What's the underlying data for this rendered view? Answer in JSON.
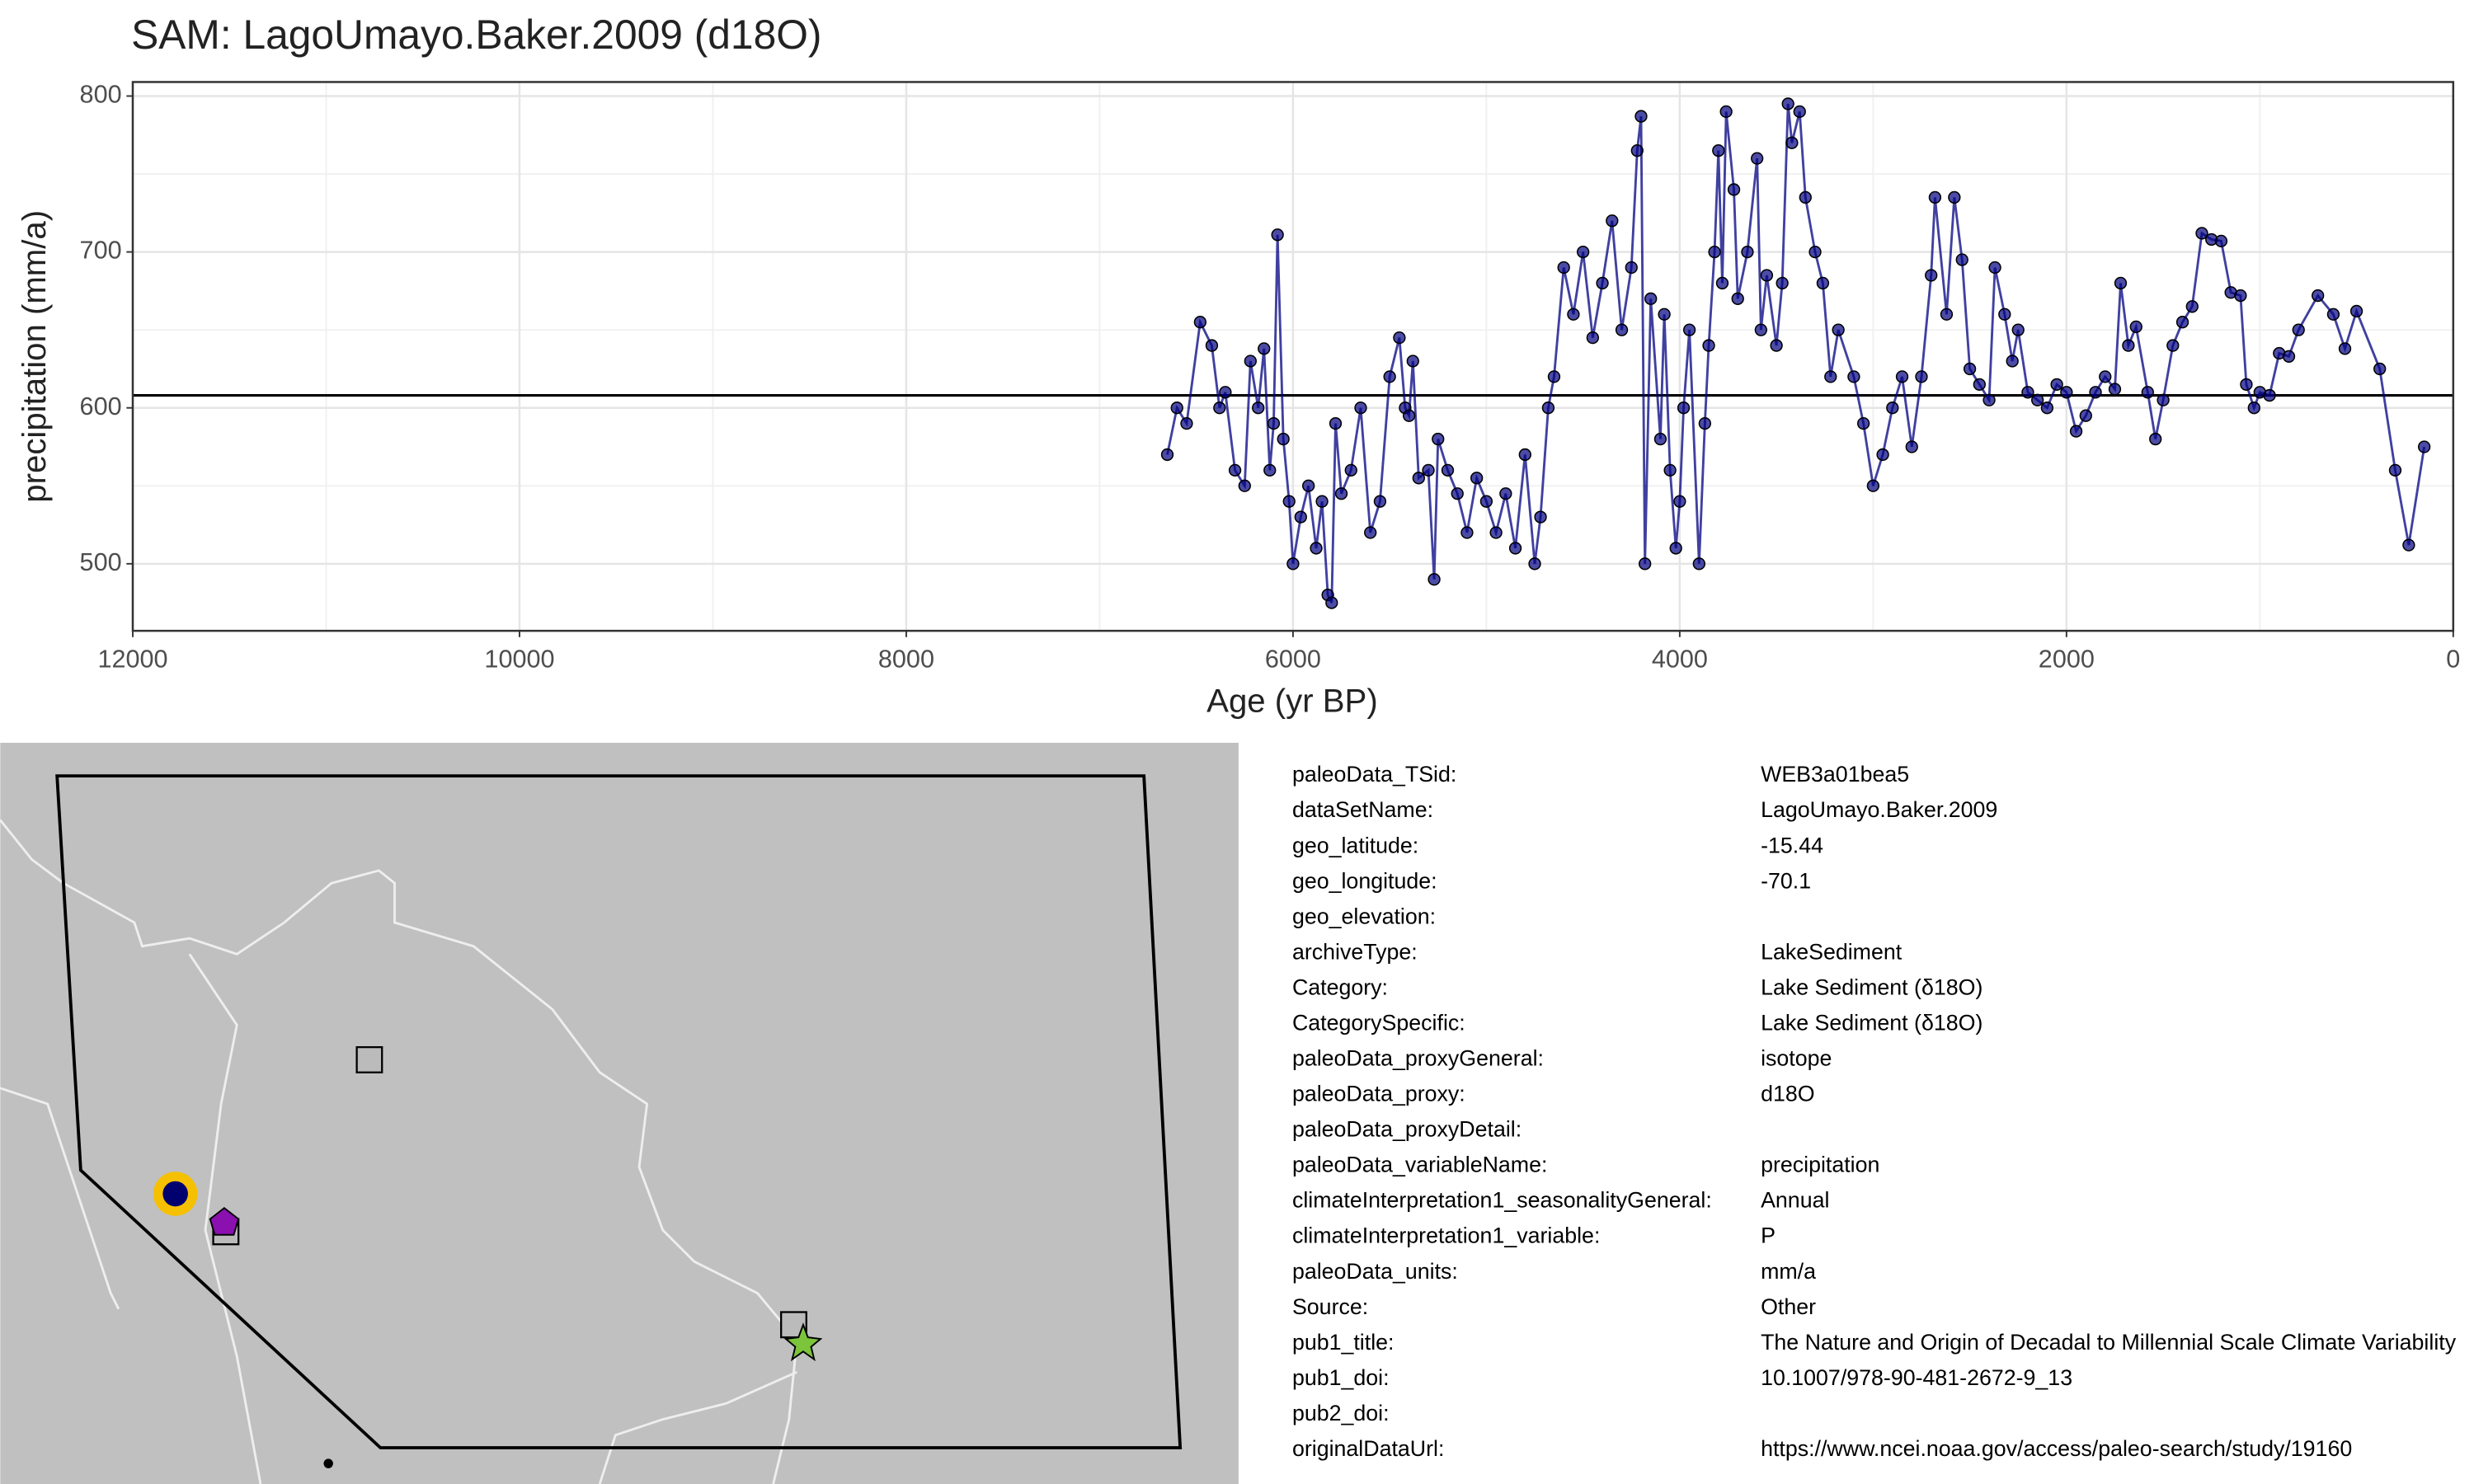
{
  "chart_data": {
    "type": "line",
    "title": "SAM: LagoUmayo.Baker.2009 (d18O)",
    "x_label": "Age (yr BP)",
    "y_label": "precipitation (mm/a)",
    "xlim": [
      12000,
      0
    ],
    "ylim": [
      457,
      809
    ],
    "xticks": [
      12000,
      10000,
      8000,
      6000,
      4000,
      2000,
      0
    ],
    "yticks": [
      500,
      600,
      700,
      800
    ],
    "grid": true,
    "hline": 608,
    "series": [
      {
        "name": "precipitation",
        "color": "#000080",
        "x": [
          6650,
          6600,
          6550,
          6480,
          6420,
          6380,
          6350,
          6300,
          6250,
          6220,
          6180,
          6150,
          6120,
          6100,
          6080,
          6050,
          6020,
          6000,
          5960,
          5920,
          5880,
          5850,
          5820,
          5800,
          5780,
          5750,
          5700,
          5650,
          5600,
          5550,
          5500,
          5450,
          5420,
          5400,
          5380,
          5350,
          5300,
          5270,
          5250,
          5200,
          5150,
          5100,
          5050,
          5000,
          4950,
          4900,
          4850,
          4800,
          4750,
          4720,
          4680,
          4650,
          4600,
          4550,
          4500,
          4450,
          4400,
          4350,
          4300,
          4250,
          4220,
          4200,
          4180,
          4150,
          4100,
          4080,
          4050,
          4020,
          4000,
          3980,
          3950,
          3900,
          3870,
          3850,
          3820,
          3800,
          3780,
          3760,
          3720,
          3700,
          3650,
          3600,
          3580,
          3550,
          3500,
          3470,
          3440,
          3420,
          3380,
          3350,
          3300,
          3260,
          3220,
          3180,
          3100,
          3050,
          3000,
          2950,
          2900,
          2850,
          2800,
          2750,
          2700,
          2680,
          2620,
          2580,
          2540,
          2500,
          2450,
          2400,
          2370,
          2320,
          2280,
          2250,
          2200,
          2150,
          2100,
          2050,
          2000,
          1950,
          1900,
          1850,
          1800,
          1750,
          1720,
          1680,
          1640,
          1580,
          1540,
          1500,
          1450,
          1400,
          1350,
          1300,
          1250,
          1200,
          1150,
          1100,
          1070,
          1030,
          1000,
          950,
          900,
          850,
          800,
          700,
          620,
          560,
          500,
          380,
          300,
          230,
          150
        ],
        "values": [
          570,
          600,
          590,
          655,
          640,
          600,
          610,
          560,
          550,
          630,
          600,
          638,
          560,
          590,
          711,
          580,
          540,
          500,
          530,
          550,
          510,
          540,
          480,
          475,
          590,
          545,
          560,
          600,
          520,
          540,
          620,
          645,
          600,
          595,
          630,
          555,
          560,
          490,
          580,
          560,
          545,
          520,
          555,
          540,
          520,
          545,
          510,
          570,
          500,
          530,
          600,
          620,
          690,
          660,
          700,
          645,
          680,
          720,
          650,
          690,
          765,
          787,
          500,
          670,
          580,
          660,
          560,
          510,
          540,
          600,
          650,
          500,
          590,
          640,
          700,
          765,
          680,
          790,
          740,
          670,
          700,
          760,
          650,
          685,
          640,
          680,
          795,
          770,
          790,
          735,
          700,
          680,
          620,
          650,
          620,
          590,
          550,
          570,
          600,
          620,
          575,
          620,
          685,
          735,
          660,
          735,
          695,
          625,
          615,
          605,
          690,
          660,
          630,
          650,
          610,
          605,
          600,
          615,
          610,
          585,
          595,
          610,
          620,
          612,
          680,
          640,
          652,
          610,
          580,
          605,
          640,
          655,
          665,
          712,
          708,
          707,
          674,
          672,
          615,
          600,
          610,
          608,
          635,
          633,
          650,
          672,
          660,
          638,
          662,
          625,
          560,
          512,
          575
        ]
      }
    ]
  },
  "metadata": [
    [
      "paleoData_TSid:",
      "WEB3a01bea5"
    ],
    [
      "dataSetName:",
      "LagoUmayo.Baker.2009"
    ],
    [
      "geo_latitude:",
      "-15.44"
    ],
    [
      "geo_longitude:",
      "-70.1"
    ],
    [
      "geo_elevation:"
    ],
    [
      "archiveType:",
      "LakeSediment"
    ],
    [
      "Category:",
      "Lake Sediment (δ18O)"
    ],
    [
      "CategorySpecific:",
      "Lake Sediment (δ18O)"
    ],
    [
      "paleoData_proxyGeneral:",
      "isotope"
    ],
    [
      "paleoData_proxy:",
      "d18O"
    ],
    [
      "paleoData_proxyDetail:"
    ],
    [
      "paleoData_variableName:",
      "precipitation"
    ],
    [
      "climateInterpretation1_seasonalityGeneral:",
      "Annual"
    ],
    [
      "climateInterpretation1_variable:",
      "P"
    ],
    [
      "paleoData_units:",
      "mm/a"
    ],
    [
      "Source:",
      "Other"
    ],
    [
      "pub1_title:",
      "The Nature and Origin of Decadal to Millennial Scale Climate Variability"
    ],
    [
      "pub1_doi:",
      "10.1007/978-90-481-2672-9_13"
    ],
    [
      "pub2_doi:"
    ],
    [
      "originalDataUrl:",
      "https://www.ncei.noaa.gov/access/paleo-search/study/19160"
    ]
  ]
}
